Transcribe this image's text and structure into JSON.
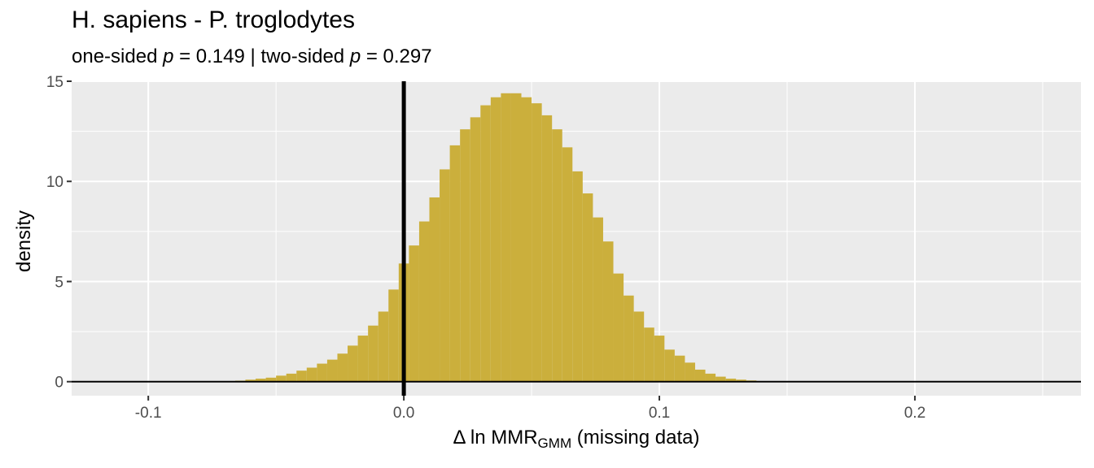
{
  "chart_data": {
    "type": "bar",
    "title": "H. sapiens - P. troglodytes",
    "subtitle": {
      "one_label": "one-sided ",
      "p1": "p",
      "one_value": " = 0.149 | two-sided ",
      "p2": "p",
      "two_value": " = 0.297"
    },
    "xlabel": {
      "prefix": "Δ ln MMR",
      "sub": "GMM",
      "suffix": " (missing data)"
    },
    "ylabel": "density",
    "xlim": [
      -0.13,
      0.265
    ],
    "ylim": [
      -0.7,
      15.0
    ],
    "x_ticks": [
      -0.1,
      0.0,
      0.1,
      0.2
    ],
    "x_tick_labels": [
      "-0.1",
      "0.0",
      "0.1",
      "0.2"
    ],
    "y_ticks": [
      0,
      5,
      10,
      15
    ],
    "y_tick_labels": [
      "0",
      "5",
      "10",
      "15"
    ],
    "grid": true,
    "bin_width": 0.004,
    "bin_start": -0.074,
    "densities": [
      0.01,
      0.02,
      0.05,
      0.1,
      0.15,
      0.2,
      0.3,
      0.4,
      0.55,
      0.7,
      0.9,
      1.1,
      1.4,
      1.8,
      2.3,
      2.8,
      3.5,
      4.6,
      5.9,
      6.8,
      8.0,
      9.2,
      10.6,
      11.8,
      12.6,
      13.2,
      13.8,
      14.2,
      14.4,
      14.4,
      14.2,
      13.9,
      13.3,
      12.6,
      11.7,
      10.5,
      9.4,
      8.2,
      7.0,
      5.4,
      4.3,
      3.5,
      2.7,
      2.3,
      1.6,
      1.3,
      0.95,
      0.6,
      0.4,
      0.25,
      0.15,
      0.1,
      0.06,
      0.03,
      0.02,
      0.01
    ],
    "vline_x": 0.0,
    "hline_y": 0,
    "bar_color": "#CBAF3C",
    "panel_color": "#EBEBEB",
    "grid_color": "#FFFFFF"
  }
}
